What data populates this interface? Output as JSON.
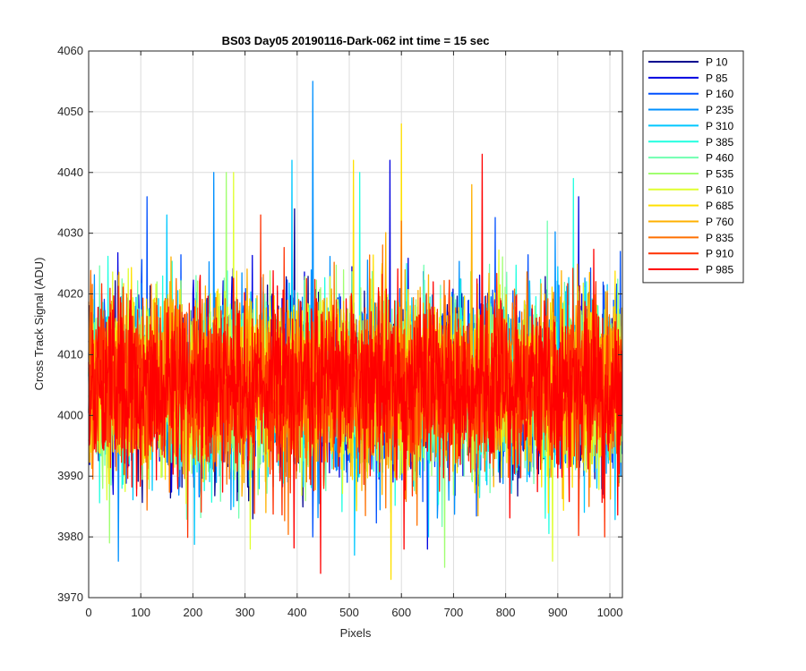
{
  "chart_data": {
    "type": "line",
    "title": "BS03 Day05 20190116-Dark-062 int time = 15 sec",
    "xlabel": "Pixels",
    "ylabel": "Cross Track Signal (ADU)",
    "xlim": [
      0,
      1024
    ],
    "ylim": [
      3970,
      4060
    ],
    "xticks": [
      "0",
      "100",
      "200",
      "300",
      "400",
      "500",
      "600",
      "700",
      "800",
      "900",
      "1000"
    ],
    "yticks": [
      "3970",
      "3980",
      "3990",
      "4000",
      "4010",
      "4020",
      "4030",
      "4040",
      "4050",
      "4060"
    ],
    "grid": true,
    "legend_position": "outside-top-right",
    "x_count": 1024,
    "series_mean": 4005,
    "series_std": 7,
    "series": [
      {
        "name": "P 10",
        "color": "#00008F",
        "spikes": [
          [
            395,
            4034
          ],
          [
            580,
            3984
          ]
        ]
      },
      {
        "name": "P 85",
        "color": "#0000E0",
        "spikes": [
          [
            578,
            4042
          ],
          [
            940,
            4036
          ],
          [
            650,
            3978
          ]
        ]
      },
      {
        "name": "P 160",
        "color": "#0050FF",
        "spikes": [
          [
            112,
            4036
          ],
          [
            430,
            3980
          ],
          [
            1020,
            4027
          ]
        ]
      },
      {
        "name": "P 235",
        "color": "#0090FF",
        "spikes": [
          [
            430,
            4055
          ],
          [
            57,
            3976
          ],
          [
            240,
            4040
          ]
        ]
      },
      {
        "name": "P 310",
        "color": "#00C8FF",
        "spikes": [
          [
            390,
            4042
          ],
          [
            510,
            3977
          ],
          [
            150,
            4033
          ]
        ]
      },
      {
        "name": "P 385",
        "color": "#20FFE0",
        "spikes": [
          [
            520,
            4040
          ],
          [
            930,
            4039
          ]
        ]
      },
      {
        "name": "P 460",
        "color": "#70FFB0",
        "spikes": [
          [
            880,
            4032
          ],
          [
            720,
            3990
          ]
        ]
      },
      {
        "name": "P 535",
        "color": "#A0FF70",
        "spikes": [
          [
            264,
            4040
          ],
          [
            683,
            3975
          ],
          [
            40,
            3979
          ]
        ]
      },
      {
        "name": "P 610",
        "color": "#E0FF30",
        "spikes": [
          [
            278,
            4040
          ],
          [
            890,
            3976
          ],
          [
            310,
            3978
          ]
        ]
      },
      {
        "name": "P 685",
        "color": "#FFE000",
        "spikes": [
          [
            600,
            4048
          ],
          [
            580,
            3973
          ],
          [
            508,
            4042
          ]
        ]
      },
      {
        "name": "P 760",
        "color": "#FFB000",
        "spikes": [
          [
            735,
            4038
          ],
          [
            340,
            3984
          ]
        ]
      },
      {
        "name": "P 835",
        "color": "#FF7000",
        "spikes": [
          [
            600,
            4032
          ],
          [
            960,
            3985
          ]
        ]
      },
      {
        "name": "P 910",
        "color": "#FF3000",
        "spikes": [
          [
            330,
            4033
          ],
          [
            990,
            3980
          ]
        ]
      },
      {
        "name": "P 985",
        "color": "#FF0000",
        "spikes": [
          [
            755,
            4043
          ],
          [
            445,
            3974
          ],
          [
            605,
            3978
          ]
        ]
      }
    ]
  }
}
